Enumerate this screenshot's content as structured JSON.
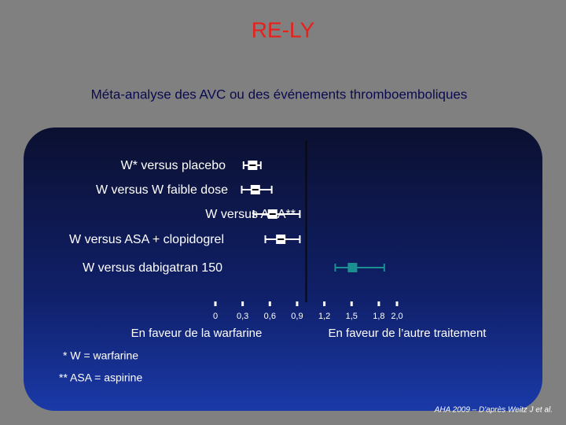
{
  "chart_data": {
    "type": "forest",
    "title": "RE-LY",
    "subtitle": "Méta-analyse des AVC ou des événements thromboemboliques",
    "categories": [
      "W* versus placebo",
      "W versus W faible dose",
      "W versus ASA**",
      "W versus ASA + clopidogrel",
      "W versus dabigatran 150"
    ],
    "values": [
      0.41,
      0.44,
      0.63,
      0.72,
      1.51
    ],
    "ci_low": [
      0.31,
      0.29,
      0.42,
      0.55,
      1.32
    ],
    "ci_high": [
      0.5,
      0.62,
      0.93,
      0.93,
      1.86
    ],
    "colors": [
      "#ffffff",
      "#ffffff",
      "#ffffff",
      "#ffffff",
      "#1a9090"
    ],
    "xlim": [
      0,
      2.0
    ],
    "xticks": [
      0,
      {
        "value": 0.3,
        "label": "0,3"
      },
      {
        "value": 0.6,
        "label": "0,6"
      },
      {
        "value": 0.9,
        "label": "0,9"
      },
      {
        "value": 1.2,
        "label": "1,2"
      },
      {
        "value": 1.5,
        "label": "1,5"
      },
      {
        "value": 1.8,
        "label": "1,8"
      },
      {
        "value": 2.0,
        "label": "2,0"
      }
    ],
    "reference_line": 1,
    "xlabel_left": "En faveur de la warfarine",
    "xlabel_right": "En faveur de l’autre traitement",
    "footnotes": [
      "* W = warfarine",
      "** ASA = aspirine"
    ],
    "source": "AHA 2009 – D'après Weitz J et al."
  }
}
